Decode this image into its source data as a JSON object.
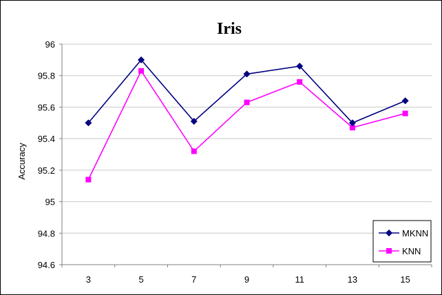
{
  "chart_data": {
    "type": "line",
    "title": "Iris",
    "xlabel": "",
    "ylabel": "Accuracy",
    "categories": [
      "3",
      "5",
      "7",
      "9",
      "11",
      "13",
      "15"
    ],
    "ylim": [
      94.6,
      96
    ],
    "yticks": [
      "94.6",
      "94.8",
      "95",
      "95.2",
      "95.4",
      "95.6",
      "95.8",
      "96"
    ],
    "grid": "horizontal",
    "legend_position": "bottom-right",
    "series": [
      {
        "name": "MKNN",
        "color": "#000080",
        "marker": "diamond",
        "values": [
          95.5,
          95.9,
          95.51,
          95.81,
          95.86,
          95.5,
          95.64
        ]
      },
      {
        "name": "KNN",
        "color": "#FF00FF",
        "marker": "square",
        "values": [
          95.14,
          95.83,
          95.32,
          95.63,
          95.76,
          95.47,
          95.56
        ]
      }
    ]
  }
}
